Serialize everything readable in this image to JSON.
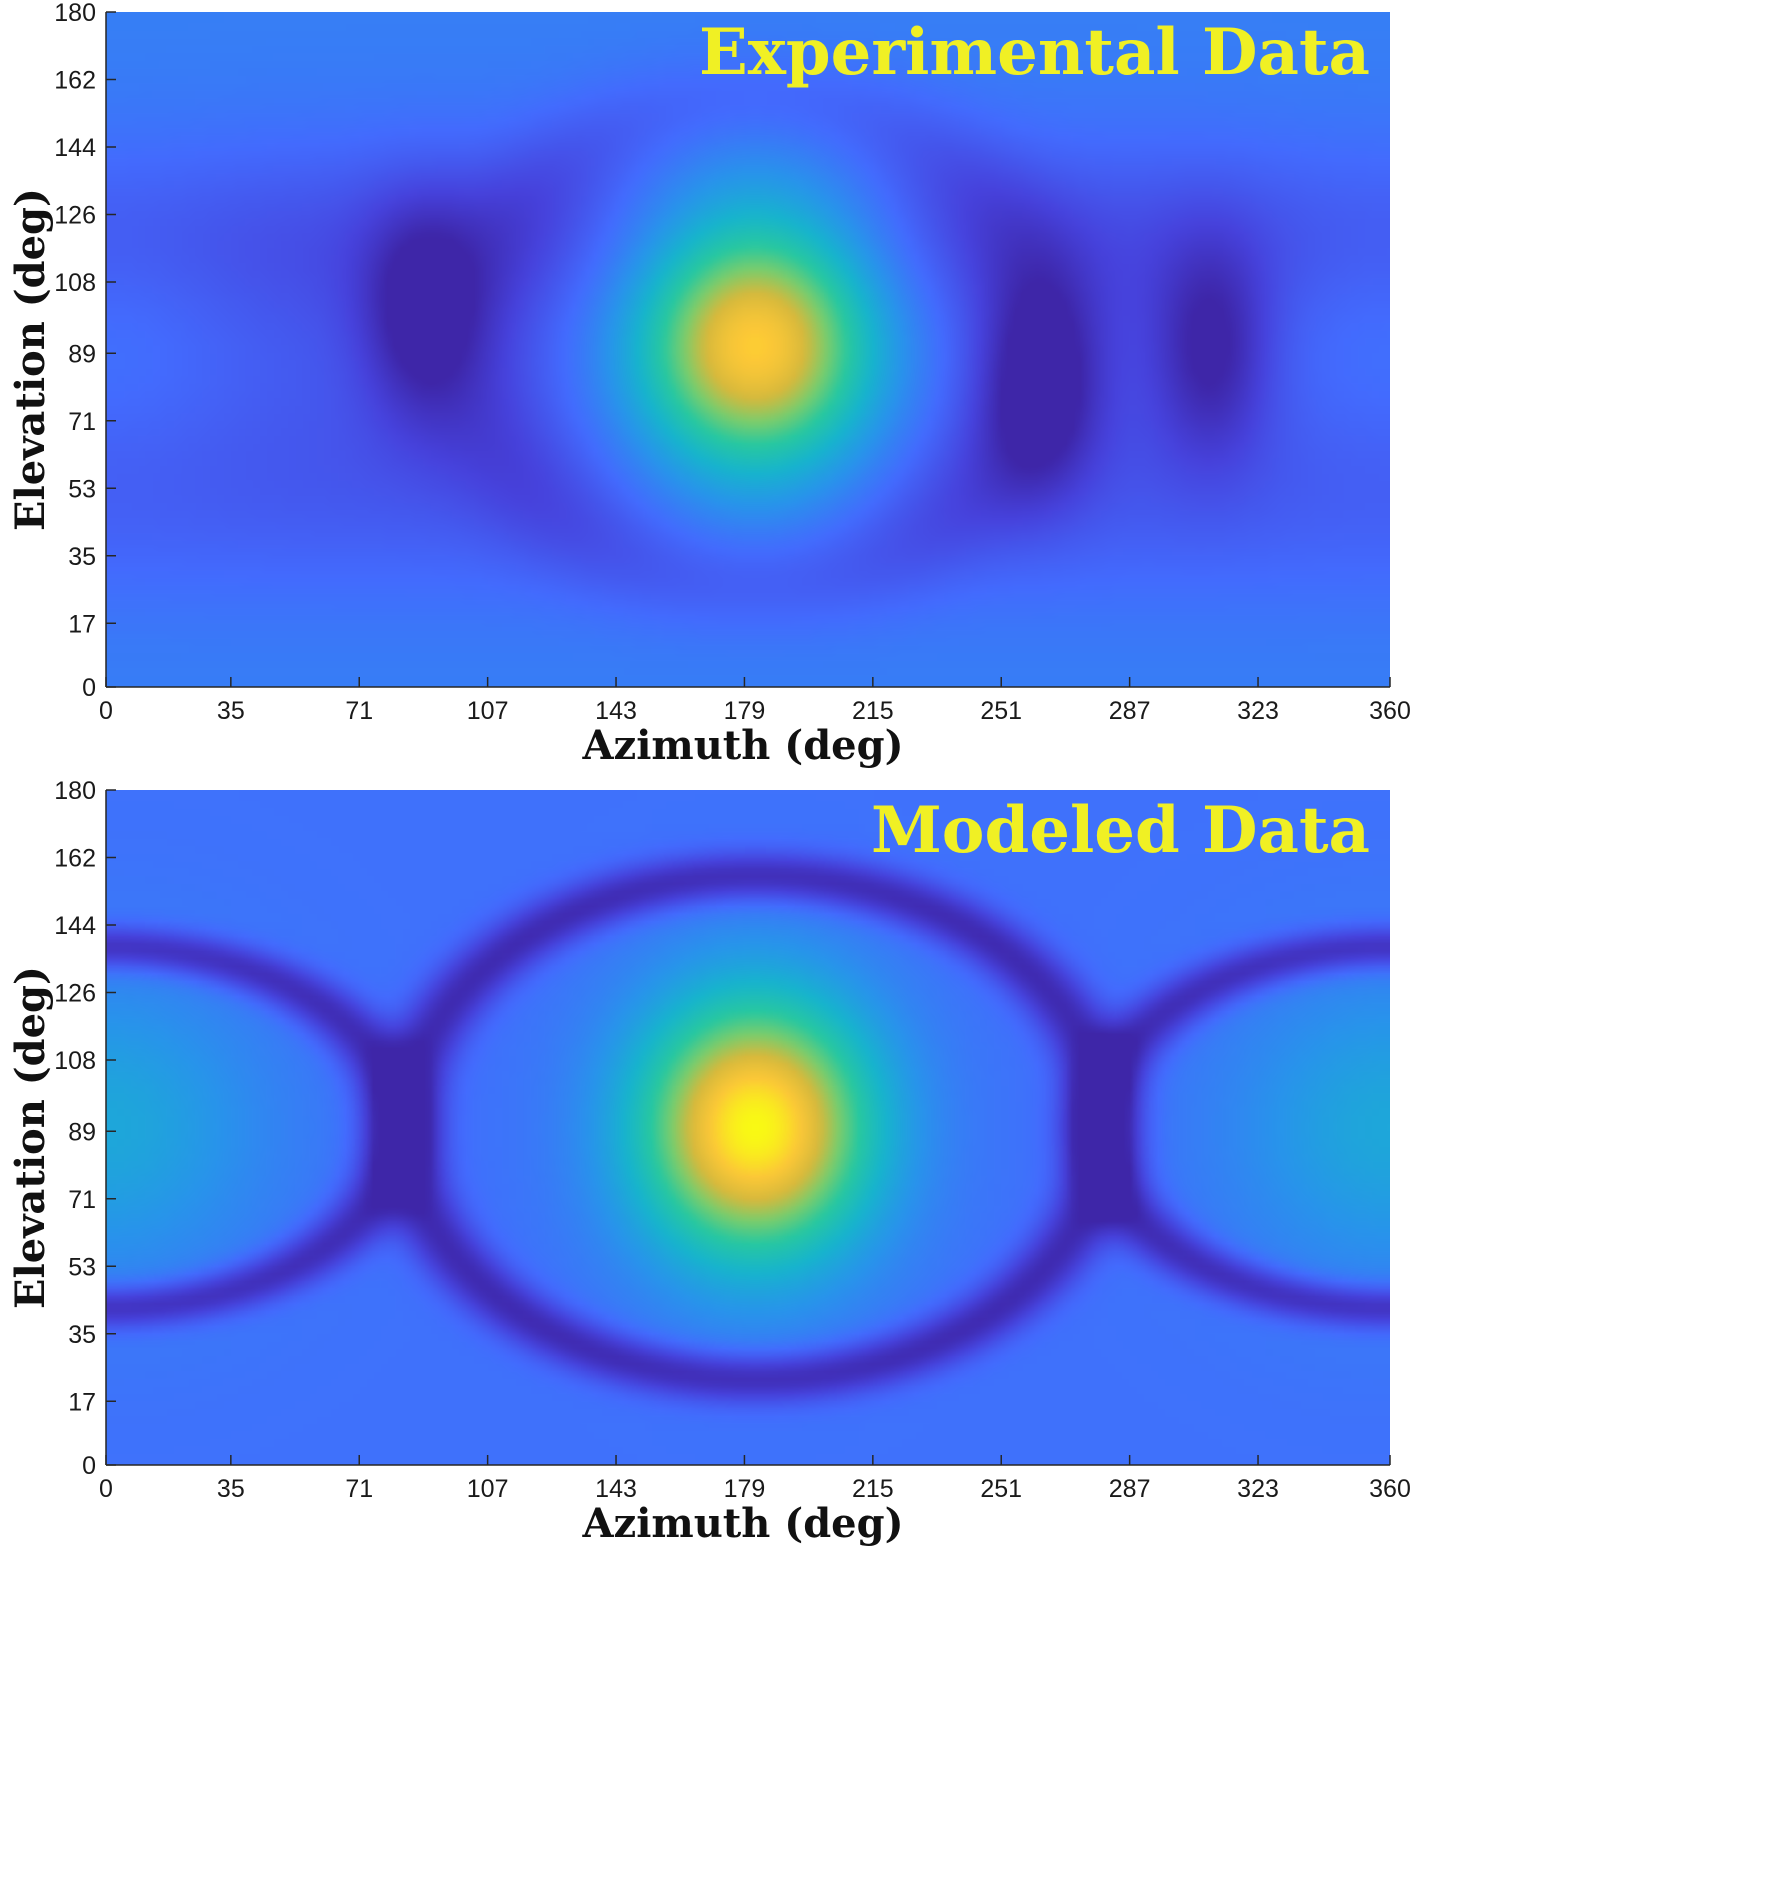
{
  "chart_data": [
    {
      "type": "heatmap",
      "title": "Experimental Data",
      "xlabel": "Azimuth (deg)",
      "ylabel": "Elevation (deg)",
      "xlim": [
        0,
        360
      ],
      "ylim": [
        0,
        180
      ],
      "xticks": [
        0,
        35,
        71,
        107,
        143,
        179,
        215,
        251,
        287,
        323,
        360
      ],
      "yticks": [
        0,
        17,
        35,
        53,
        71,
        89,
        108,
        126,
        144,
        162,
        180
      ],
      "colormap": "parula",
      "grid": false,
      "features": [
        {
          "kind": "peak",
          "azimuth": 182,
          "elevation": 92,
          "level": 1.0
        },
        {
          "kind": "lobe",
          "azimuth": 0,
          "elevation": 95,
          "level": 0.33
        },
        {
          "kind": "lobe",
          "azimuth": 360,
          "elevation": 95,
          "level": 0.33
        },
        {
          "kind": "null",
          "azimuth": 88,
          "elevation": 100,
          "level": 0.05
        },
        {
          "kind": "null",
          "azimuth": 262,
          "elevation": 80,
          "level": 0.05
        },
        {
          "kind": "null",
          "azimuth": 310,
          "elevation": 90,
          "level": 0.07
        }
      ]
    },
    {
      "type": "heatmap",
      "title": "Modeled Data",
      "xlabel": "Azimuth (deg)",
      "ylabel": "Elevation (deg)",
      "xlim": [
        0,
        360
      ],
      "ylim": [
        0,
        180
      ],
      "xticks": [
        0,
        35,
        71,
        107,
        143,
        179,
        215,
        251,
        287,
        323,
        360
      ],
      "yticks": [
        0,
        17,
        35,
        53,
        71,
        89,
        108,
        126,
        144,
        162,
        180
      ],
      "colormap": "parula",
      "grid": false,
      "features": [
        {
          "kind": "peak",
          "azimuth": 182,
          "elevation": 90,
          "level": 1.0
        },
        {
          "kind": "lobe",
          "azimuth": 0,
          "elevation": 90,
          "level": 0.42
        },
        {
          "kind": "lobe",
          "azimuth": 360,
          "elevation": 90,
          "level": 0.42
        },
        {
          "kind": "null-ring",
          "azimuth": 182,
          "elevation": 90,
          "level": 0.0
        },
        {
          "kind": "null-ring",
          "azimuth": 0,
          "elevation": 90,
          "level": 0.0
        },
        {
          "kind": "null-ring",
          "azimuth": 360,
          "elevation": 90,
          "level": 0.0
        }
      ]
    }
  ]
}
